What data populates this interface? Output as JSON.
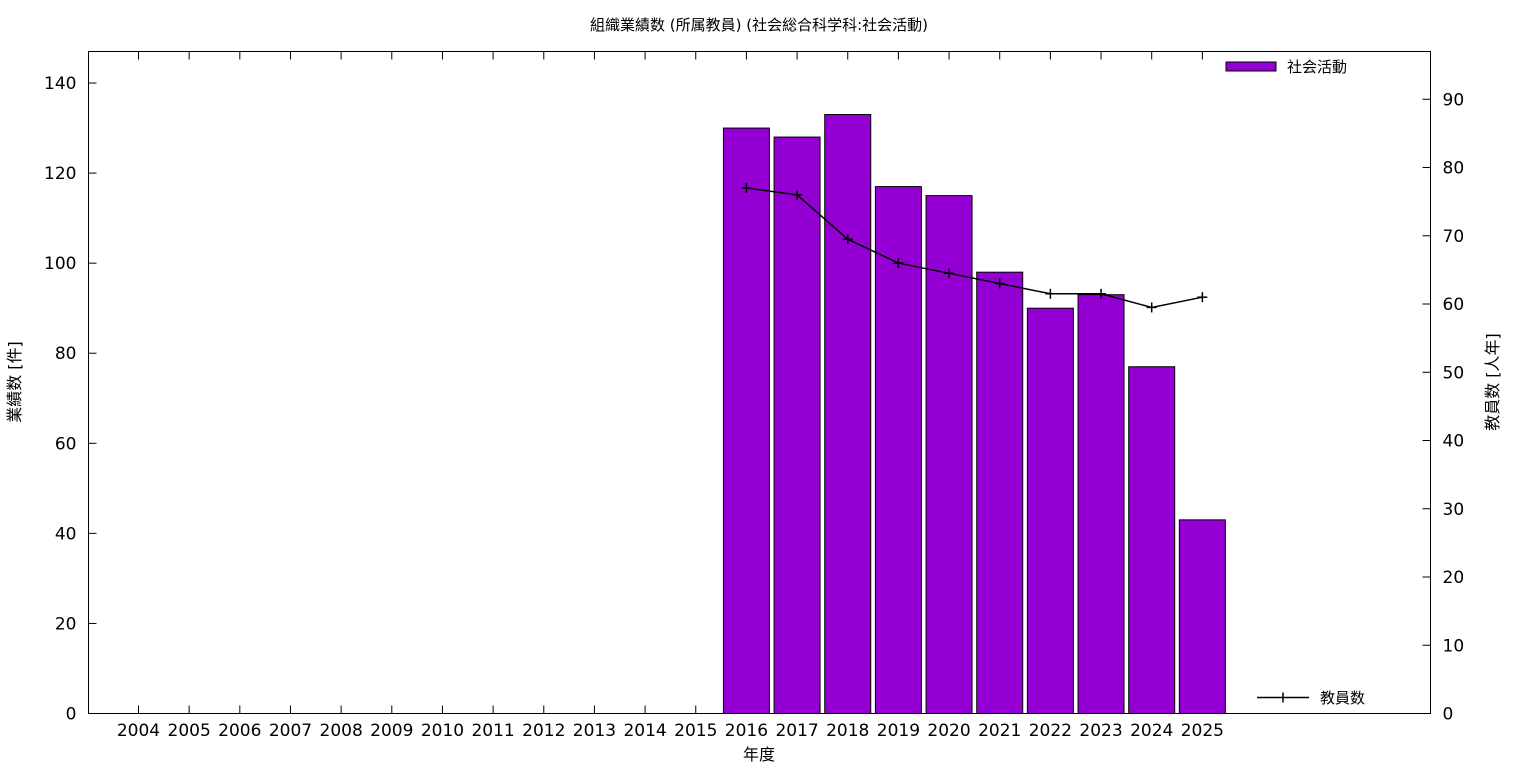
{
  "chart_data": {
    "type": "bar",
    "title": "組織業績数 (所属教員) (社会総合科学科:社会活動)",
    "xlabel": "年度",
    "ylabel": "業績数 [件]",
    "y2label": "教員数 [人年]",
    "categories": [
      "2004",
      "2005",
      "2006",
      "2007",
      "2008",
      "2009",
      "2010",
      "2011",
      "2012",
      "2013",
      "2014",
      "2015",
      "2016",
      "2017",
      "2018",
      "2019",
      "2020",
      "2021",
      "2022",
      "2023",
      "2024",
      "2025"
    ],
    "ylim": [
      0,
      147
    ],
    "y_ticks": [
      0,
      20,
      40,
      60,
      80,
      100,
      120,
      140
    ],
    "y2lim": [
      0,
      97
    ],
    "y2_ticks": [
      0,
      10,
      20,
      30,
      40,
      50,
      60,
      70,
      80,
      90
    ],
    "grid": false,
    "series": [
      {
        "name": "社会活動",
        "type": "bar",
        "axis": "left",
        "color": "#9400d3",
        "legend_position": "top-right",
        "values": [
          null,
          null,
          null,
          null,
          null,
          null,
          null,
          null,
          null,
          null,
          null,
          null,
          130,
          128,
          133,
          117,
          115,
          98,
          90,
          93,
          77,
          43
        ]
      },
      {
        "name": "教員数",
        "type": "line",
        "axis": "right",
        "color": "#000000",
        "legend_position": "bottom-right",
        "values": [
          null,
          null,
          null,
          null,
          null,
          null,
          null,
          null,
          null,
          null,
          null,
          null,
          77.0,
          76.0,
          69.5,
          66.0,
          64.5,
          63.0,
          61.5,
          61.5,
          59.5,
          61.0
        ]
      }
    ]
  }
}
